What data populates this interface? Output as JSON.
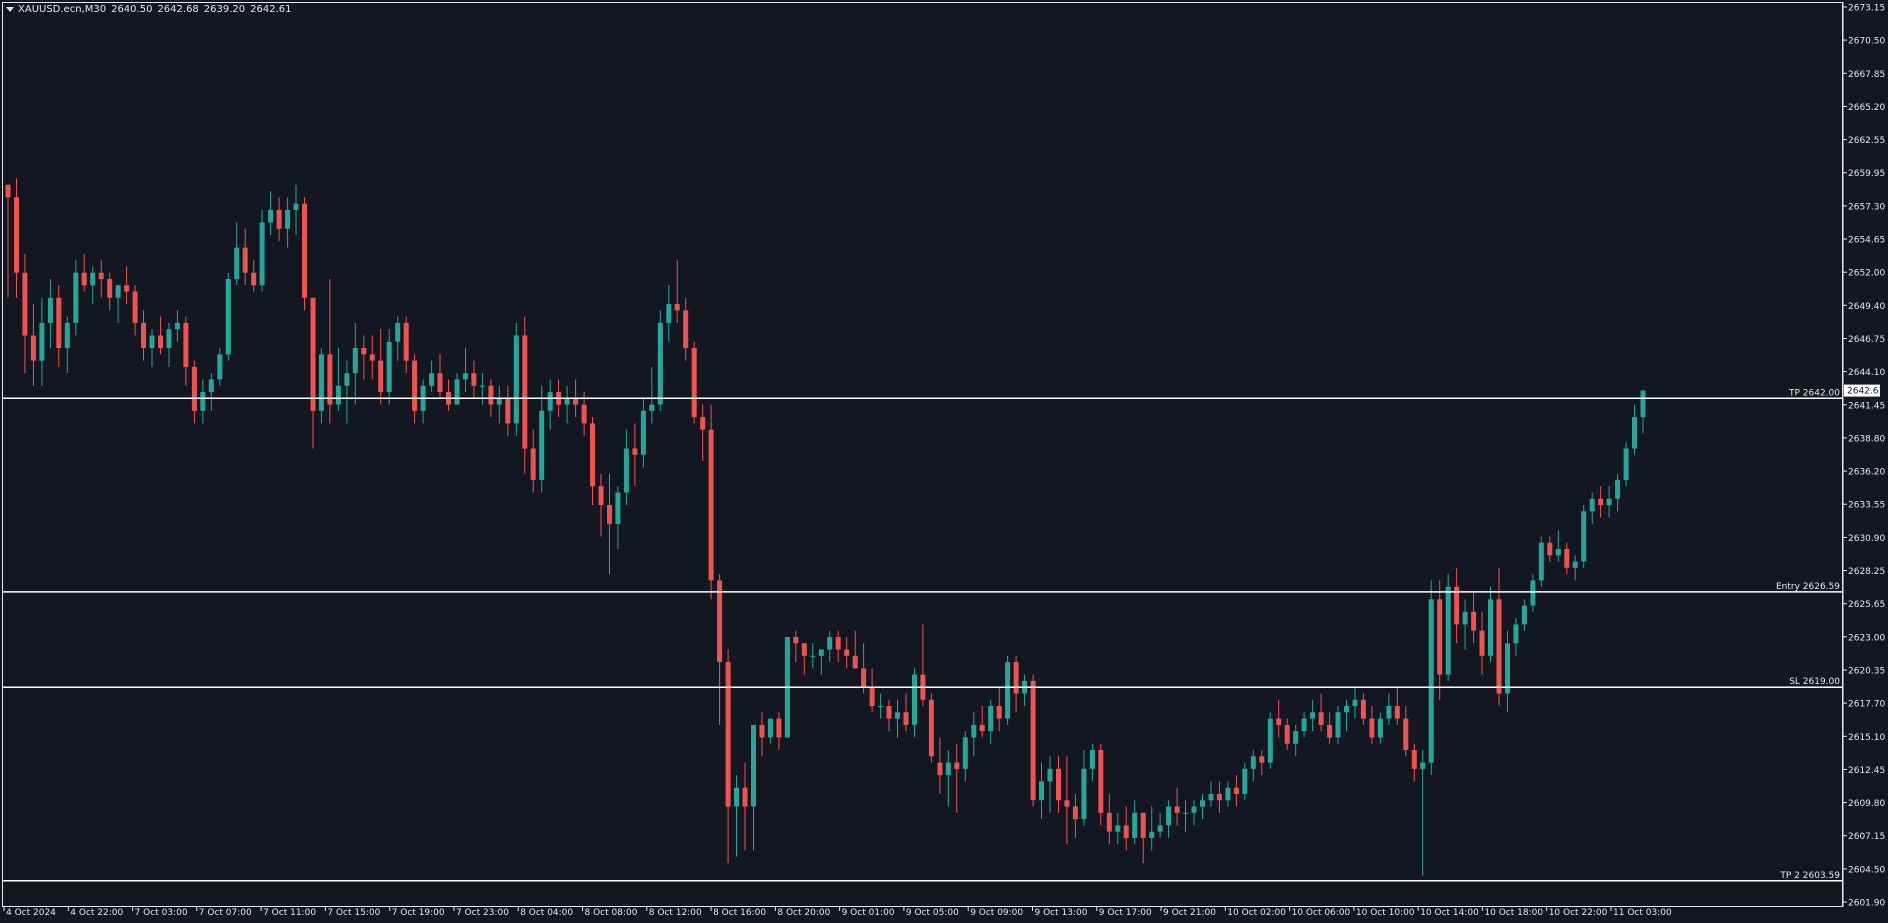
{
  "header": {
    "symbol": "XAUUSD.ecn,M30",
    "open": "2640.50",
    "high": "2642.68",
    "low": "2639.20",
    "close": "2642.61"
  },
  "colors": {
    "background": "#131722",
    "bull": "#26a69a",
    "bear": "#ef5350",
    "line": "#ffffff",
    "text": "#e6e6e6"
  },
  "chart_data": {
    "type": "candlestick",
    "symbol": "XAUUSD.ecn",
    "timeframe": "M30",
    "ylim": [
      2601.9,
      2673.15
    ],
    "y_ticks": [
      "2673.15",
      "2670.50",
      "2667.85",
      "2665.20",
      "2662.55",
      "2659.95",
      "2657.30",
      "2654.65",
      "2652.00",
      "2649.40",
      "2646.75",
      "2644.10",
      "2641.45",
      "2638.80",
      "2636.20",
      "2633.55",
      "2630.90",
      "2628.25",
      "2625.65",
      "2623.00",
      "2620.35",
      "2617.70",
      "2615.10",
      "2612.45",
      "2609.80",
      "2607.15",
      "2604.50",
      "2601.90"
    ],
    "x_ticks": [
      "4 Oct 2024",
      "4 Oct 22:00",
      "7 Oct 03:00",
      "7 Oct 07:00",
      "7 Oct 11:00",
      "7 Oct 15:00",
      "7 Oct 19:00",
      "7 Oct 23:00",
      "8 Oct 04:00",
      "8 Oct 08:00",
      "8 Oct 12:00",
      "8 Oct 16:00",
      "8 Oct 20:00",
      "9 Oct 01:00",
      "9 Oct 05:00",
      "9 Oct 09:00",
      "9 Oct 13:00",
      "9 Oct 17:00",
      "9 Oct 21:00",
      "10 Oct 02:00",
      "10 Oct 06:00",
      "10 Oct 10:00",
      "10 Oct 14:00",
      "10 Oct 18:00",
      "10 Oct 22:00",
      "11 Oct 03:00"
    ],
    "levels": [
      {
        "label": "TP 2642.00",
        "value": 2642.0
      },
      {
        "label": "Entry 2626.59",
        "value": 2626.59
      },
      {
        "label": "SL 2619.00",
        "value": 2619.0
      },
      {
        "label": "TP 2 2603.59",
        "value": 2603.59
      }
    ],
    "current_price": "2642.61",
    "current_price_value": 2642.61,
    "candles": [
      [
        2659.0,
        2659.0,
        2650.0,
        2658.0
      ],
      [
        2658.0,
        2659.5,
        2650.0,
        2652.0
      ],
      [
        2652.0,
        2653.5,
        2644.0,
        2647.0
      ],
      [
        2647.0,
        2649.5,
        2643.0,
        2645.0
      ],
      [
        2645.0,
        2650.0,
        2643.0,
        2648.0
      ],
      [
        2648.0,
        2651.5,
        2646.0,
        2650.0
      ],
      [
        2650.0,
        2651.0,
        2644.5,
        2646.0
      ],
      [
        2646.0,
        2648.5,
        2644.0,
        2648.0
      ],
      [
        2648.0,
        2653.0,
        2647.0,
        2652.0
      ],
      [
        2652.0,
        2653.5,
        2650.5,
        2651.0
      ],
      [
        2651.0,
        2652.5,
        2649.5,
        2652.0
      ],
      [
        2652.0,
        2653.0,
        2650.0,
        2651.5
      ],
      [
        2651.5,
        2652.0,
        2649.0,
        2650.0
      ],
      [
        2650.0,
        2651.0,
        2648.0,
        2651.0
      ],
      [
        2651.0,
        2652.5,
        2649.5,
        2650.5
      ],
      [
        2650.5,
        2651.0,
        2647.0,
        2648.0
      ],
      [
        2648.0,
        2649.0,
        2645.0,
        2646.0
      ],
      [
        2646.0,
        2647.5,
        2644.5,
        2647.0
      ],
      [
        2647.0,
        2648.5,
        2645.5,
        2646.0
      ],
      [
        2646.0,
        2648.0,
        2644.5,
        2647.5
      ],
      [
        2647.5,
        2649.0,
        2646.5,
        2648.0
      ],
      [
        2648.0,
        2648.5,
        2643.0,
        2644.5
      ],
      [
        2644.5,
        2645.0,
        2640.0,
        2641.0
      ],
      [
        2641.0,
        2643.5,
        2640.0,
        2642.5
      ],
      [
        2642.5,
        2644.0,
        2641.0,
        2643.5
      ],
      [
        2643.5,
        2646.0,
        2643.0,
        2645.5
      ],
      [
        2645.5,
        2652.0,
        2645.0,
        2651.5
      ],
      [
        2651.5,
        2656.0,
        2651.0,
        2654.0
      ],
      [
        2654.0,
        2655.5,
        2651.0,
        2652.0
      ],
      [
        2652.0,
        2653.0,
        2650.5,
        2651.0
      ],
      [
        2651.0,
        2657.0,
        2650.5,
        2656.0
      ],
      [
        2656.0,
        2658.5,
        2655.0,
        2657.0
      ],
      [
        2657.0,
        2658.0,
        2654.5,
        2655.5
      ],
      [
        2655.5,
        2658.0,
        2654.0,
        2657.0
      ],
      [
        2657.0,
        2659.0,
        2655.0,
        2657.5
      ],
      [
        2657.5,
        2658.0,
        2649.0,
        2650.0
      ],
      [
        2650.0,
        2650.0,
        2638.0,
        2641.0
      ],
      [
        2641.0,
        2646.0,
        2640.0,
        2645.5
      ],
      [
        2645.5,
        2651.5,
        2640.0,
        2641.5
      ],
      [
        2641.5,
        2646.0,
        2641.0,
        2643.0
      ],
      [
        2643.0,
        2645.0,
        2640.0,
        2644.0
      ],
      [
        2644.0,
        2648.0,
        2641.5,
        2646.0
      ],
      [
        2646.0,
        2647.0,
        2643.5,
        2645.5
      ],
      [
        2645.5,
        2647.0,
        2643.5,
        2645.0
      ],
      [
        2645.0,
        2647.5,
        2641.5,
        2642.5
      ],
      [
        2642.5,
        2647.5,
        2641.5,
        2646.5
      ],
      [
        2646.5,
        2648.5,
        2645.0,
        2648.0
      ],
      [
        2648.0,
        2648.5,
        2644.0,
        2645.0
      ],
      [
        2645.0,
        2645.5,
        2640.0,
        2641.0
      ],
      [
        2641.0,
        2643.5,
        2640.0,
        2643.0
      ],
      [
        2643.0,
        2645.0,
        2642.5,
        2644.0
      ],
      [
        2644.0,
        2645.5,
        2642.0,
        2642.5
      ],
      [
        2642.5,
        2643.5,
        2641.0,
        2641.5
      ],
      [
        2641.5,
        2644.0,
        2641.5,
        2643.5
      ],
      [
        2643.5,
        2646.0,
        2642.5,
        2644.0
      ],
      [
        2644.0,
        2645.0,
        2642.0,
        2643.0
      ],
      [
        2643.0,
        2644.0,
        2641.5,
        2643.0
      ],
      [
        2643.0,
        2643.5,
        2640.5,
        2641.5
      ],
      [
        2641.5,
        2643.0,
        2640.0,
        2642.0
      ],
      [
        2642.0,
        2643.0,
        2639.0,
        2640.0
      ],
      [
        2640.0,
        2648.0,
        2639.0,
        2647.0
      ],
      [
        2647.0,
        2648.5,
        2636.0,
        2638.0
      ],
      [
        2638.0,
        2639.5,
        2634.5,
        2635.5
      ],
      [
        2635.5,
        2643.0,
        2634.5,
        2641.0
      ],
      [
        2641.0,
        2643.5,
        2639.5,
        2642.5
      ],
      [
        2642.5,
        2643.5,
        2640.5,
        2641.5
      ],
      [
        2641.5,
        2643.0,
        2640.0,
        2642.0
      ],
      [
        2642.0,
        2643.5,
        2640.5,
        2641.5
      ],
      [
        2641.5,
        2642.5,
        2639.0,
        2640.0
      ],
      [
        2640.0,
        2640.5,
        2633.5,
        2635.0
      ],
      [
        2635.0,
        2636.0,
        2631.0,
        2633.5
      ],
      [
        2633.5,
        2636.0,
        2628.0,
        2632.0
      ],
      [
        2632.0,
        2635.0,
        2630.0,
        2634.5
      ],
      [
        2634.5,
        2639.5,
        2633.5,
        2638.0
      ],
      [
        2638.0,
        2640.0,
        2635.0,
        2637.5
      ],
      [
        2637.5,
        2642.0,
        2636.5,
        2641.0
      ],
      [
        2641.0,
        2644.5,
        2640.0,
        2641.5
      ],
      [
        2641.5,
        2649.0,
        2641.0,
        2648.0
      ],
      [
        2648.0,
        2651.0,
        2646.5,
        2649.5
      ],
      [
        2649.5,
        2653.0,
        2648.0,
        2649.0
      ],
      [
        2649.0,
        2650.0,
        2645.0,
        2646.0
      ],
      [
        2646.0,
        2646.5,
        2640.0,
        2640.5
      ],
      [
        2640.5,
        2641.5,
        2637.0,
        2639.5
      ],
      [
        2639.5,
        2641.5,
        2626.0,
        2627.5
      ],
      [
        2627.5,
        2628.0,
        2616.0,
        2621.0
      ],
      [
        2621.0,
        2622.0,
        2605.0,
        2609.5
      ],
      [
        2609.5,
        2612.0,
        2605.5,
        2611.0
      ],
      [
        2611.0,
        2613.0,
        2606.0,
        2609.5
      ],
      [
        2609.5,
        2616.0,
        2606.0,
        2616.0
      ],
      [
        2616.0,
        2617.0,
        2613.5,
        2615.0
      ],
      [
        2615.0,
        2616.5,
        2614.5,
        2616.5
      ],
      [
        2616.5,
        2617.0,
        2614.0,
        2615.0
      ],
      [
        2615.0,
        2623.0,
        2615.0,
        2623.0
      ],
      [
        2623.0,
        2623.5,
        2621.0,
        2622.5
      ],
      [
        2622.5,
        2622.5,
        2620.0,
        2621.5
      ],
      [
        2621.5,
        2622.5,
        2620.5,
        2621.5
      ],
      [
        2621.5,
        2622.0,
        2620.0,
        2622.0
      ],
      [
        2622.0,
        2623.5,
        2621.0,
        2623.0
      ],
      [
        2623.0,
        2623.5,
        2621.0,
        2622.0
      ],
      [
        2622.0,
        2623.0,
        2620.5,
        2621.5
      ],
      [
        2621.5,
        2623.5,
        2620.5,
        2620.5
      ],
      [
        2620.5,
        2622.5,
        2618.5,
        2619.0
      ],
      [
        2619.0,
        2620.5,
        2617.0,
        2617.5
      ],
      [
        2617.5,
        2618.5,
        2616.5,
        2617.5
      ],
      [
        2617.5,
        2618.0,
        2615.5,
        2616.5
      ],
      [
        2616.5,
        2618.0,
        2615.0,
        2617.0
      ],
      [
        2617.0,
        2618.5,
        2615.5,
        2616.0
      ],
      [
        2616.0,
        2620.5,
        2615.0,
        2620.0
      ],
      [
        2620.0,
        2624.0,
        2617.5,
        2618.0
      ],
      [
        2618.0,
        2618.5,
        2613.0,
        2613.5
      ],
      [
        2613.0,
        2615.0,
        2610.5,
        2612.0
      ],
      [
        2612.0,
        2614.0,
        2609.5,
        2613.0
      ],
      [
        2613.0,
        2614.5,
        2609.0,
        2612.5
      ],
      [
        2612.5,
        2615.5,
        2611.5,
        2615.0
      ],
      [
        2615.0,
        2617.0,
        2613.5,
        2616.0
      ],
      [
        2616.0,
        2617.5,
        2615.0,
        2615.5
      ],
      [
        2615.5,
        2618.0,
        2614.5,
        2617.5
      ],
      [
        2617.5,
        2619.0,
        2615.5,
        2616.5
      ],
      [
        2616.5,
        2621.5,
        2616.0,
        2621.0
      ],
      [
        2621.0,
        2621.5,
        2617.0,
        2618.5
      ],
      [
        2618.5,
        2620.0,
        2617.5,
        2619.5
      ],
      [
        2619.5,
        2620.0,
        2609.5,
        2610.0
      ],
      [
        2610.0,
        2613.0,
        2608.5,
        2611.5
      ],
      [
        2611.5,
        2613.5,
        2609.0,
        2612.5
      ],
      [
        2612.5,
        2613.5,
        2609.0,
        2610.0
      ],
      [
        2610.0,
        2613.5,
        2606.5,
        2609.5
      ],
      [
        2609.5,
        2610.5,
        2607.0,
        2608.5
      ],
      [
        2608.5,
        2614.0,
        2608.0,
        2612.5
      ],
      [
        2612.5,
        2614.5,
        2611.5,
        2614.0
      ],
      [
        2614.0,
        2614.5,
        2608.0,
        2609.0
      ],
      [
        2609.0,
        2610.5,
        2606.5,
        2607.5
      ],
      [
        2607.5,
        2609.0,
        2606.5,
        2608.0
      ],
      [
        2608.0,
        2609.5,
        2606.0,
        2607.0
      ],
      [
        2607.0,
        2610.0,
        2606.5,
        2609.0
      ],
      [
        2609.0,
        2609.0,
        2605.0,
        2607.0
      ],
      [
        2607.0,
        2609.5,
        2606.0,
        2607.5
      ],
      [
        2607.5,
        2609.0,
        2607.0,
        2608.0
      ],
      [
        2608.0,
        2610.0,
        2607.0,
        2609.5
      ],
      [
        2609.5,
        2611.0,
        2608.0,
        2609.0
      ],
      [
        2609.0,
        2610.0,
        2607.5,
        2609.0
      ],
      [
        2609.0,
        2610.0,
        2608.0,
        2609.5
      ],
      [
        2609.5,
        2610.5,
        2608.5,
        2610.0
      ],
      [
        2610.0,
        2611.5,
        2609.5,
        2610.5
      ],
      [
        2610.5,
        2611.5,
        2609.0,
        2610.0
      ],
      [
        2610.0,
        2611.5,
        2609.5,
        2611.0
      ],
      [
        2611.0,
        2612.0,
        2609.5,
        2610.5
      ],
      [
        2610.5,
        2613.0,
        2610.0,
        2612.5
      ],
      [
        2612.5,
        2614.0,
        2611.5,
        2613.5
      ],
      [
        2613.5,
        2614.0,
        2612.0,
        2613.0
      ],
      [
        2613.0,
        2617.0,
        2612.5,
        2616.5
      ],
      [
        2616.5,
        2618.0,
        2615.0,
        2616.0
      ],
      [
        2616.0,
        2616.5,
        2614.0,
        2614.5
      ],
      [
        2614.5,
        2616.0,
        2613.5,
        2615.5
      ],
      [
        2615.5,
        2617.0,
        2615.0,
        2616.5
      ],
      [
        2616.5,
        2618.0,
        2615.5,
        2617.0
      ],
      [
        2617.0,
        2618.5,
        2615.5,
        2616.0
      ],
      [
        2616.0,
        2617.0,
        2614.5,
        2615.0
      ],
      [
        2615.0,
        2617.5,
        2614.5,
        2617.0
      ],
      [
        2617.0,
        2618.0,
        2615.5,
        2617.5
      ],
      [
        2617.5,
        2619.0,
        2616.5,
        2618.0
      ],
      [
        2618.0,
        2618.5,
        2616.0,
        2616.5
      ],
      [
        2616.5,
        2617.5,
        2614.5,
        2615.0
      ],
      [
        2615.0,
        2617.0,
        2614.5,
        2616.5
      ],
      [
        2616.5,
        2618.5,
        2616.0,
        2617.5
      ],
      [
        2617.5,
        2619.0,
        2616.0,
        2616.5
      ],
      [
        2616.5,
        2617.5,
        2613.5,
        2614.0
      ],
      [
        2614.0,
        2614.5,
        2611.5,
        2612.5
      ],
      [
        2612.5,
        2614.0,
        2604.0,
        2613.0
      ],
      [
        2613.0,
        2627.5,
        2612.0,
        2626.0
      ],
      [
        2626.0,
        2627.5,
        2618.0,
        2620.0
      ],
      [
        2620.0,
        2628.0,
        2619.5,
        2627.0
      ],
      [
        2627.0,
        2628.5,
        2622.5,
        2624.0
      ],
      [
        2624.0,
        2626.0,
        2622.0,
        2625.0
      ],
      [
        2625.0,
        2626.5,
        2622.5,
        2623.5
      ],
      [
        2623.5,
        2625.0,
        2620.0,
        2621.5
      ],
      [
        2621.5,
        2627.0,
        2621.0,
        2626.0
      ],
      [
        2626.0,
        2628.5,
        2617.5,
        2618.5
      ],
      [
        2618.5,
        2623.5,
        2617.0,
        2622.5
      ],
      [
        2622.5,
        2624.5,
        2621.5,
        2624.0
      ],
      [
        2624.0,
        2626.0,
        2623.5,
        2625.5
      ],
      [
        2625.5,
        2628.0,
        2625.0,
        2627.5
      ],
      [
        2627.5,
        2631.0,
        2627.0,
        2630.5
      ],
      [
        2630.5,
        2631.0,
        2629.0,
        2629.5
      ],
      [
        2629.5,
        2631.5,
        2629.0,
        2630.0
      ],
      [
        2630.0,
        2630.5,
        2628.0,
        2628.5
      ],
      [
        2628.5,
        2629.5,
        2627.5,
        2629.0
      ],
      [
        2629.0,
        2633.5,
        2628.5,
        2633.0
      ],
      [
        2633.0,
        2634.5,
        2632.0,
        2634.0
      ],
      [
        2634.0,
        2635.0,
        2632.5,
        2633.5
      ],
      [
        2633.5,
        2635.0,
        2632.5,
        2634.0
      ],
      [
        2634.0,
        2636.0,
        2633.0,
        2635.5
      ],
      [
        2635.5,
        2638.5,
        2635.0,
        2638.0
      ],
      [
        2638.0,
        2641.5,
        2637.5,
        2640.5
      ],
      [
        2640.5,
        2642.68,
        2639.2,
        2642.61
      ]
    ]
  }
}
